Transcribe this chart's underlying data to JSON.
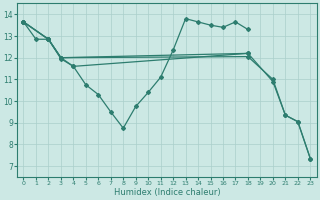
{
  "xlabel": "Humidex (Indice chaleur)",
  "bg_color": "#cce8e4",
  "grid_color": "#aacfcb",
  "line_color": "#2d7d6f",
  "xlim": [
    -0.5,
    23.5
  ],
  "ylim": [
    6.5,
    14.5
  ],
  "xticks": [
    0,
    1,
    2,
    3,
    4,
    5,
    6,
    7,
    8,
    9,
    10,
    11,
    12,
    13,
    14,
    15,
    16,
    17,
    18,
    19,
    20,
    21,
    22,
    23
  ],
  "yticks": [
    7,
    8,
    9,
    10,
    11,
    12,
    13,
    14
  ],
  "line1_x": [
    0,
    1,
    2,
    3,
    4,
    5,
    6,
    7,
    8,
    9,
    10,
    11,
    12,
    13,
    14,
    15,
    16,
    17,
    18
  ],
  "line1_y": [
    13.65,
    12.85,
    12.85,
    11.95,
    11.6,
    10.75,
    10.3,
    9.5,
    8.75,
    9.75,
    10.4,
    11.1,
    12.35,
    13.8,
    13.65,
    13.5,
    13.4,
    13.65,
    13.3
  ],
  "line2_x": [
    0,
    2,
    3,
    18,
    20,
    21,
    22,
    23
  ],
  "line2_y": [
    13.65,
    12.85,
    12.0,
    12.2,
    10.9,
    9.35,
    9.05,
    7.35
  ],
  "line3_x": [
    0,
    2,
    3,
    18,
    20,
    21,
    22,
    23
  ],
  "line3_y": [
    13.65,
    12.85,
    12.0,
    12.05,
    11.0,
    9.35,
    9.05,
    7.35
  ],
  "line4_x": [
    0,
    2,
    3,
    4,
    18
  ],
  "line4_y": [
    13.65,
    12.85,
    12.0,
    11.6,
    12.2
  ]
}
